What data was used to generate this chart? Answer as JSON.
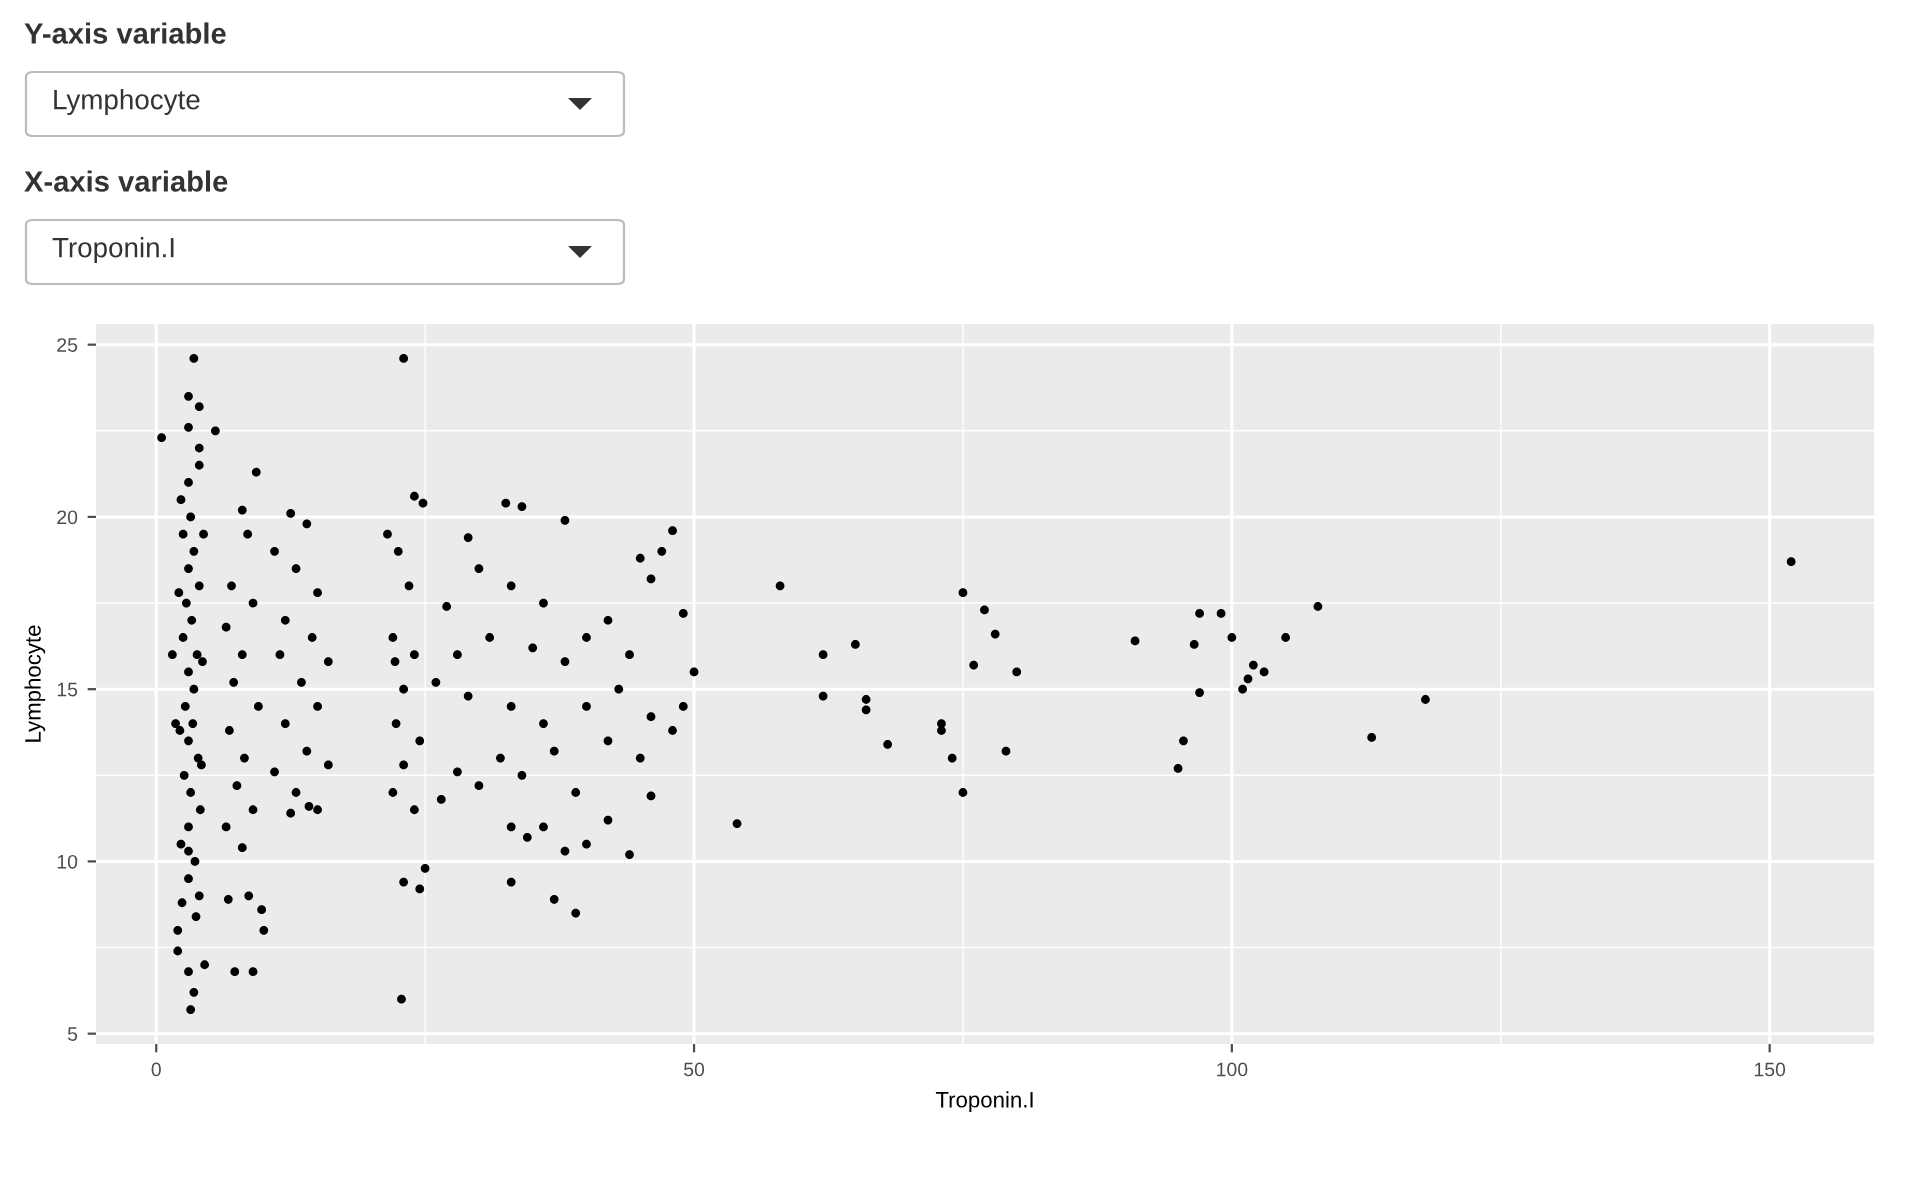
{
  "chart_data": {
    "type": "scatter",
    "xlabel": "Troponin.I",
    "ylabel": "Lymphocyte",
    "annotations": [
      "Y-axis variable",
      "Lymphocyte",
      "X-axis variable",
      "Troponin.I"
    ],
    "xlim": [
      -5.6,
      159.7
    ],
    "ylim": [
      4.7,
      25.6
    ],
    "xticks": [
      0,
      50,
      100,
      150
    ],
    "yticks": [
      5,
      10,
      15,
      20,
      25
    ],
    "grid": true,
    "marker": "circle",
    "series": [
      {
        "color": "#000000",
        "x": [
          3.5,
          3,
          4,
          3,
          5.5,
          0.5,
          4,
          3,
          3.2,
          2.5,
          3.5,
          3,
          4,
          2.8,
          3.3,
          2.5,
          3.8,
          3,
          3.5,
          2.7,
          3.4,
          3,
          3.9,
          2.6,
          3.2,
          4.1,
          3,
          2.3,
          3.6,
          3,
          4,
          2.4,
          3.7,
          2,
          4.5,
          3,
          3.5,
          3.2,
          2,
          3,
          4.2,
          2.2,
          4.3,
          2.1,
          4.4,
          2.3,
          4,
          1.5,
          1.8,
          9.3,
          8,
          8.5,
          7,
          9,
          6.5,
          8,
          7.2,
          9.5,
          6.8,
          8.2,
          7.5,
          9,
          6.5,
          8,
          8.6,
          9.8,
          10,
          7.3,
          9,
          6.7,
          12.5,
          14,
          11,
          13,
          15,
          12,
          14.5,
          11.5,
          13.5,
          15,
          12,
          14,
          11,
          13,
          15,
          12.5,
          14.2,
          16,
          16,
          21.5,
          23,
          24,
          24.8,
          22.5,
          23.5,
          22,
          24,
          23,
          22.3,
          24.5,
          23,
          22,
          24,
          23,
          25,
          24.5,
          22.8,
          22.2,
          29,
          32.5,
          34,
          30,
          33,
          38,
          36,
          45,
          48,
          47,
          46,
          27,
          28,
          31,
          35,
          38,
          40,
          42,
          44,
          49,
          50,
          26,
          29,
          33,
          36,
          40,
          43,
          46,
          49,
          28,
          32,
          34,
          37,
          39,
          42,
          45,
          48,
          30,
          33,
          34.5,
          36,
          38,
          40,
          42,
          44,
          46,
          37,
          39,
          33,
          26.5,
          54,
          58,
          62,
          62,
          65,
          66,
          66,
          68,
          73,
          73,
          74,
          75,
          75,
          76,
          77,
          78,
          79,
          80,
          91,
          95,
          95.5,
          96.5,
          97,
          97,
          99,
          100,
          101,
          101.5,
          102,
          103,
          105,
          108,
          113,
          118,
          152
        ],
        "values": [
          24.6,
          23.5,
          23.2,
          22.6,
          22.5,
          22.3,
          22,
          21,
          20,
          19.5,
          19,
          18.5,
          18,
          17.5,
          17,
          16.5,
          16,
          15.5,
          15,
          14.5,
          14,
          13.5,
          13,
          12.5,
          12,
          11.5,
          11,
          10.5,
          10,
          9.5,
          9,
          8.8,
          8.4,
          7.4,
          7,
          6.8,
          6.2,
          5.7,
          8,
          10.3,
          12.8,
          13.8,
          15.8,
          17.8,
          19.5,
          20.5,
          21.5,
          16,
          14,
          21.3,
          20.2,
          19.5,
          18,
          17.5,
          16.8,
          16,
          15.2,
          14.5,
          13.8,
          13,
          12.2,
          11.5,
          11,
          10.4,
          9,
          8.6,
          8,
          6.8,
          6.8,
          8.9,
          20.1,
          19.8,
          19,
          18.5,
          17.8,
          17,
          16.5,
          16,
          15.2,
          14.5,
          14,
          13.2,
          12.6,
          12,
          11.5,
          11.4,
          11.6,
          12.8,
          15.8,
          19.5,
          24.6,
          20.6,
          20.4,
          19,
          18,
          16.5,
          16,
          15,
          14,
          13.5,
          12.8,
          12,
          11.5,
          9.4,
          9.8,
          9.2,
          6.0,
          15.8,
          19.4,
          20.4,
          20.3,
          18.5,
          18,
          19.9,
          17.5,
          18.8,
          19.6,
          19,
          18.2,
          17.4,
          16,
          16.5,
          16.2,
          15.8,
          16.5,
          17,
          16,
          17.2,
          15.5,
          15.2,
          14.8,
          14.5,
          14,
          14.5,
          15,
          14.2,
          14.5,
          12.6,
          13,
          12.5,
          13.2,
          12,
          13.5,
          13,
          13.8,
          12.2,
          11,
          10.7,
          11,
          10.3,
          10.5,
          11.2,
          10.2,
          11.9,
          8.9,
          8.5,
          9.4,
          11.8,
          11.1,
          18,
          16,
          14.8,
          16.3,
          14.7,
          14.4,
          13.4,
          13.8,
          14,
          13,
          17.8,
          12,
          15.7,
          17.3,
          16.6,
          13.2,
          15.5,
          16.4,
          12.7,
          13.5,
          16.3,
          14.9,
          17.2,
          17.2,
          16.5,
          15,
          15.3,
          15.7,
          15.5,
          16.5,
          17.4,
          13.6,
          14.7,
          18.7
        ]
      }
    ]
  }
}
